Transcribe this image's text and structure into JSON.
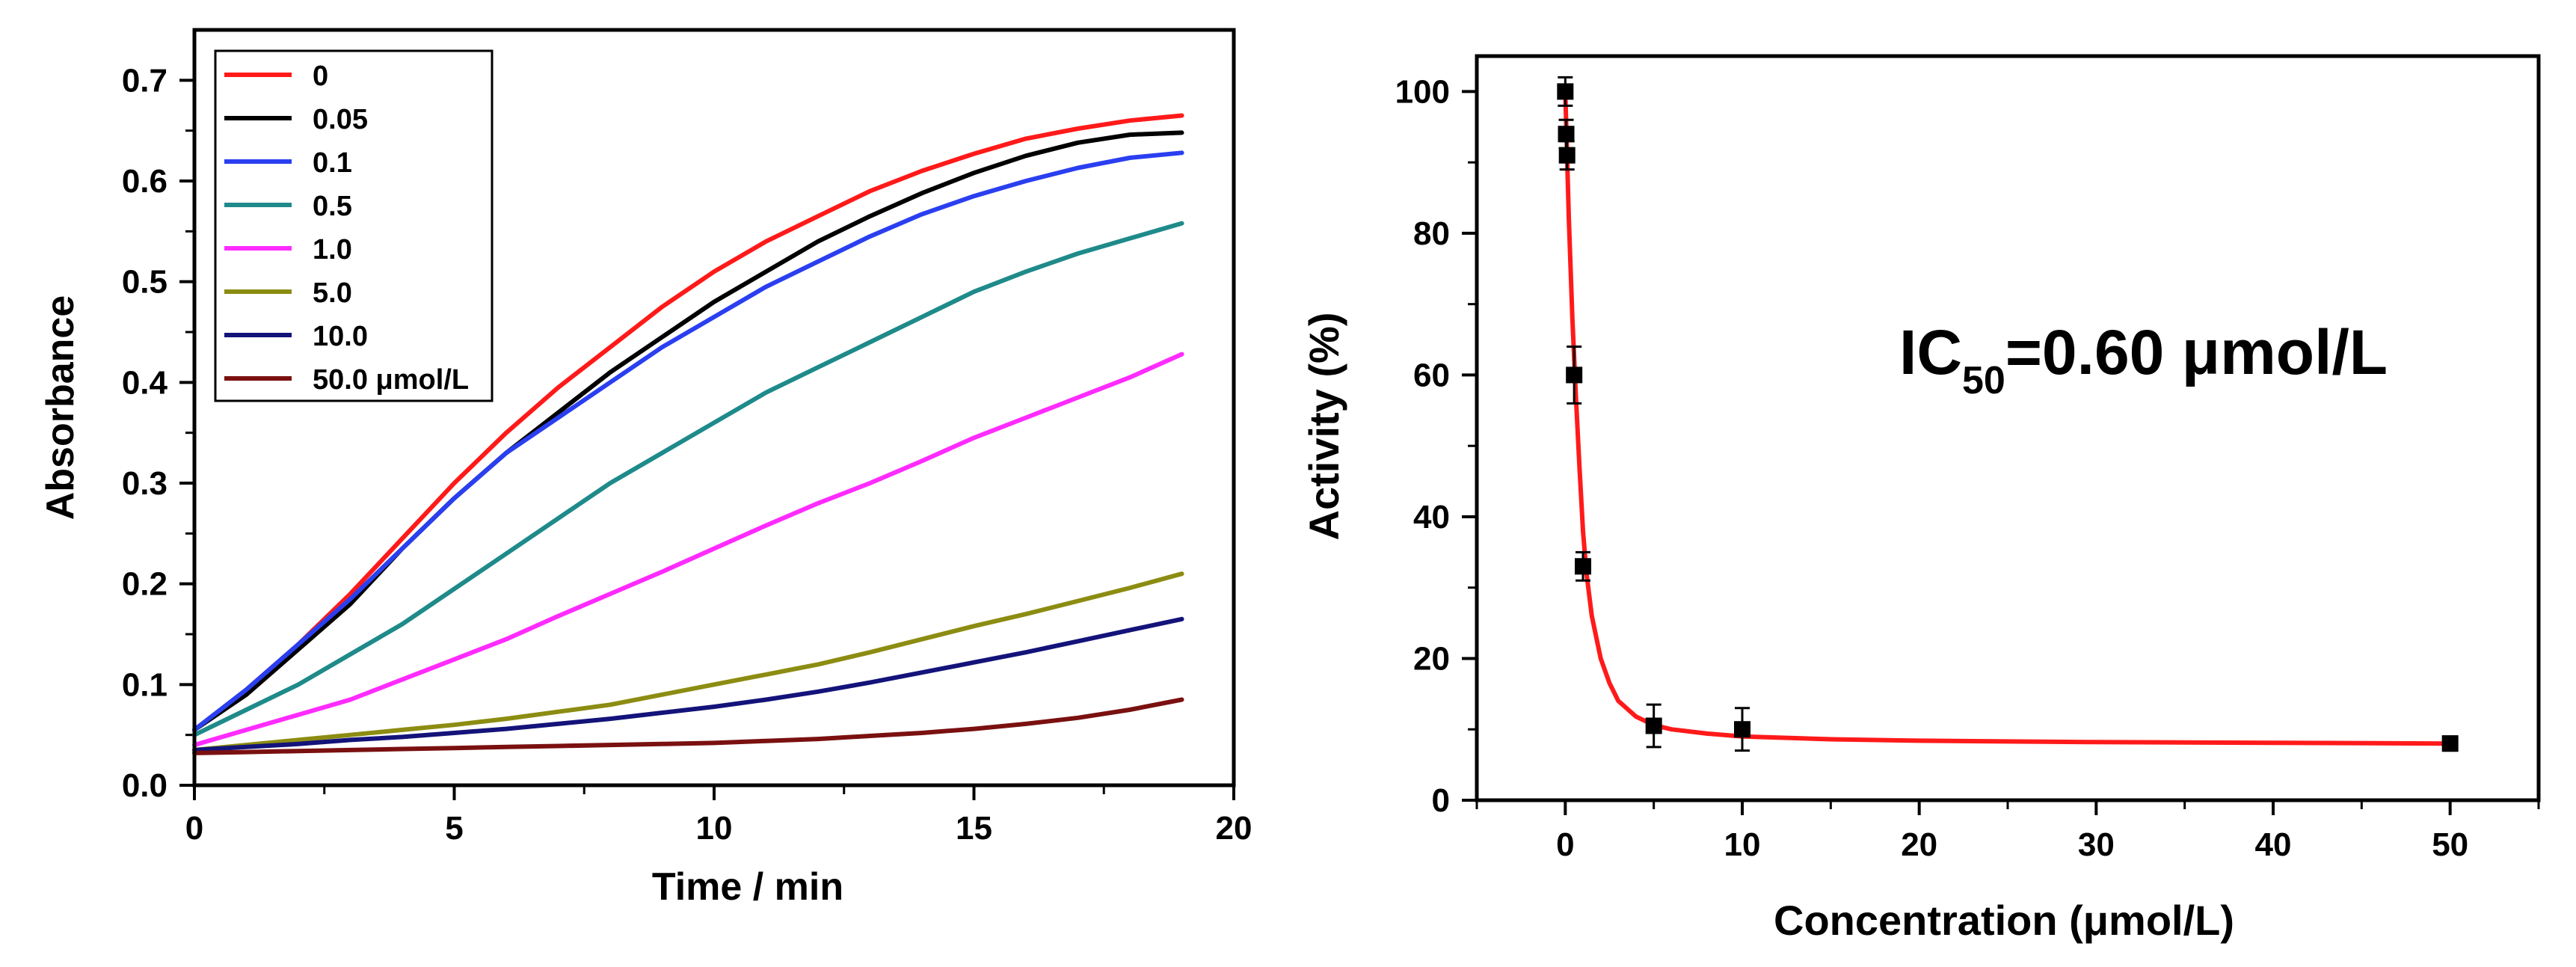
{
  "chart_data": [
    {
      "type": "line",
      "title": "",
      "xlabel": "Time / min",
      "ylabel": "Absorbance",
      "xlim": [
        0,
        20
      ],
      "ylim": [
        0,
        0.75
      ],
      "xticks": [
        "0",
        "5",
        "10",
        "15",
        "20"
      ],
      "yticks": [
        "0.0",
        "0.1",
        "0.2",
        "0.3",
        "0.4",
        "0.5",
        "0.6",
        "0.7"
      ],
      "xtick_values": [
        0,
        5,
        10,
        15,
        20
      ],
      "ytick_values": [
        0.0,
        0.1,
        0.2,
        0.3,
        0.4,
        0.5,
        0.6,
        0.7
      ],
      "legend_position": "top-left",
      "x": [
        0,
        1,
        2,
        3,
        4,
        5,
        6,
        7,
        8,
        9,
        10,
        11,
        12,
        13,
        14,
        15,
        16,
        17,
        18,
        19
      ],
      "series": [
        {
          "name": "0",
          "color": "#ff1a1a",
          "values": [
            0.055,
            0.095,
            0.14,
            0.19,
            0.245,
            0.3,
            0.35,
            0.395,
            0.435,
            0.475,
            0.51,
            0.54,
            0.565,
            0.59,
            0.61,
            0.627,
            0.642,
            0.652,
            0.66,
            0.665
          ]
        },
        {
          "name": "0.05",
          "color": "#000000",
          "values": [
            0.055,
            0.09,
            0.135,
            0.18,
            0.235,
            0.285,
            0.33,
            0.37,
            0.41,
            0.445,
            0.48,
            0.51,
            0.54,
            0.565,
            0.588,
            0.608,
            0.625,
            0.638,
            0.646,
            0.648
          ]
        },
        {
          "name": "0.1",
          "color": "#2a3ff0",
          "values": [
            0.055,
            0.095,
            0.14,
            0.185,
            0.235,
            0.285,
            0.33,
            0.365,
            0.4,
            0.435,
            0.465,
            0.495,
            0.52,
            0.545,
            0.567,
            0.585,
            0.6,
            0.613,
            0.623,
            0.628
          ]
        },
        {
          "name": "0.5",
          "color": "#1f8a8a",
          "values": [
            0.05,
            0.075,
            0.1,
            0.13,
            0.16,
            0.195,
            0.23,
            0.265,
            0.3,
            0.33,
            0.36,
            0.39,
            0.415,
            0.44,
            0.465,
            0.49,
            0.51,
            0.528,
            0.543,
            0.558
          ]
        },
        {
          "name": "1.0",
          "color": "#ff2bff",
          "values": [
            0.04,
            0.055,
            0.07,
            0.085,
            0.105,
            0.125,
            0.145,
            0.168,
            0.19,
            0.212,
            0.235,
            0.258,
            0.28,
            0.3,
            0.322,
            0.345,
            0.365,
            0.385,
            0.405,
            0.428
          ]
        },
        {
          "name": "5.0",
          "color": "#8c8c12",
          "values": [
            0.035,
            0.04,
            0.045,
            0.05,
            0.055,
            0.06,
            0.066,
            0.073,
            0.08,
            0.09,
            0.1,
            0.11,
            0.12,
            0.132,
            0.145,
            0.158,
            0.17,
            0.183,
            0.196,
            0.21
          ]
        },
        {
          "name": "10.0",
          "color": "#13137a",
          "values": [
            0.035,
            0.038,
            0.041,
            0.045,
            0.048,
            0.052,
            0.056,
            0.061,
            0.066,
            0.072,
            0.078,
            0.085,
            0.093,
            0.102,
            0.112,
            0.122,
            0.132,
            0.143,
            0.154,
            0.165
          ]
        },
        {
          "name": "50.0 μmol/L",
          "color": "#7a1010",
          "values": [
            0.032,
            0.033,
            0.034,
            0.035,
            0.036,
            0.037,
            0.038,
            0.039,
            0.04,
            0.041,
            0.042,
            0.044,
            0.046,
            0.049,
            0.052,
            0.056,
            0.061,
            0.067,
            0.075,
            0.085
          ]
        }
      ]
    },
    {
      "type": "scatter",
      "title": "",
      "xlabel": "Concentration (μmol/L)",
      "ylabel": "Activity (%)",
      "xlim": [
        -5,
        55
      ],
      "ylim": [
        0,
        105
      ],
      "xticks": [
        "0",
        "10",
        "20",
        "30",
        "40",
        "50"
      ],
      "yticks": [
        "0",
        "20",
        "40",
        "60",
        "80",
        "100"
      ],
      "xtick_values": [
        0,
        10,
        20,
        30,
        40,
        50
      ],
      "ytick_values": [
        0,
        20,
        40,
        60,
        80,
        100
      ],
      "annotation": {
        "prefix": "IC",
        "subscript": "50",
        "suffix": "=0.60 μmol/L"
      },
      "points": [
        {
          "x": 0,
          "y": 100,
          "err": 2
        },
        {
          "x": 0.05,
          "y": 94,
          "err": 2
        },
        {
          "x": 0.1,
          "y": 91,
          "err": 2
        },
        {
          "x": 0.5,
          "y": 60,
          "err": 4
        },
        {
          "x": 1.0,
          "y": 33,
          "err": 2
        },
        {
          "x": 5.0,
          "y": 10.5,
          "err": 3
        },
        {
          "x": 10.0,
          "y": 10,
          "err": 3
        },
        {
          "x": 50.0,
          "y": 8,
          "err": 1
        }
      ],
      "fit": {
        "color": "#ff1a1a",
        "x": [
          0,
          0.2,
          0.4,
          0.6,
          0.8,
          1.0,
          1.2,
          1.5,
          2,
          2.5,
          3,
          4,
          5,
          6,
          8,
          10,
          15,
          20,
          30,
          40,
          50
        ],
        "y": [
          100,
          82,
          68,
          57,
          47,
          38,
          32,
          26,
          20,
          16.5,
          14,
          11.8,
          10.6,
          10,
          9.4,
          9,
          8.6,
          8.4,
          8.2,
          8.1,
          8.0
        ]
      }
    }
  ]
}
